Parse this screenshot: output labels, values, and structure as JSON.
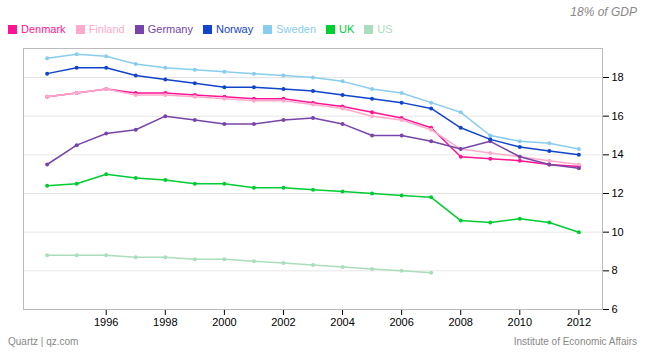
{
  "chart_data": {
    "type": "line",
    "title": "18% of GDP",
    "annotations": [
      "Quartz | qz.com",
      "Institute of Economic Affairs"
    ],
    "x": [
      1994,
      1995,
      1996,
      1997,
      1998,
      1999,
      2000,
      2001,
      2002,
      2003,
      2004,
      2005,
      2006,
      2007,
      2008,
      2009,
      2010,
      2011,
      2012
    ],
    "series": [
      {
        "name": "Denmark",
        "color": "#ff1493",
        "values": [
          17.0,
          17.2,
          17.4,
          17.2,
          17.2,
          17.1,
          17.0,
          16.9,
          16.9,
          16.7,
          16.5,
          16.2,
          15.9,
          15.4,
          13.9,
          13.8,
          13.7,
          13.5,
          13.4
        ]
      },
      {
        "name": "Finland",
        "color": "#ffaacc",
        "values": [
          17.0,
          17.2,
          17.4,
          17.1,
          17.1,
          17.0,
          16.9,
          16.8,
          16.8,
          16.6,
          16.4,
          16.0,
          15.8,
          15.3,
          14.3,
          14.1,
          13.9,
          13.7,
          13.5
        ]
      },
      {
        "name": "Germany",
        "color": "#7744aa",
        "values": [
          13.5,
          14.5,
          15.1,
          15.3,
          16.0,
          15.8,
          15.6,
          15.6,
          15.8,
          15.9,
          15.6,
          15.0,
          15.0,
          14.7,
          14.3,
          14.7,
          13.9,
          13.5,
          13.3
        ]
      },
      {
        "name": "Norway",
        "color": "#1144cc",
        "values": [
          18.2,
          18.5,
          18.5,
          18.1,
          17.9,
          17.7,
          17.5,
          17.5,
          17.4,
          17.3,
          17.1,
          16.9,
          16.7,
          16.4,
          15.4,
          14.8,
          14.4,
          14.2,
          14.0
        ]
      },
      {
        "name": "Sweden",
        "color": "#88ccee",
        "values": [
          19.0,
          19.2,
          19.1,
          18.7,
          18.5,
          18.4,
          18.3,
          18.2,
          18.1,
          18.0,
          17.8,
          17.4,
          17.2,
          16.7,
          16.2,
          15.0,
          14.7,
          14.6,
          14.3
        ]
      },
      {
        "name": "UK",
        "color": "#00cc33",
        "values": [
          12.4,
          12.5,
          13.0,
          12.8,
          12.7,
          12.5,
          12.5,
          12.3,
          12.3,
          12.2,
          12.1,
          12.0,
          11.9,
          11.8,
          10.6,
          10.5,
          10.7,
          10.5,
          10.0
        ]
      },
      {
        "name": "US",
        "color": "#aaddbb",
        "values": [
          8.8,
          8.8,
          8.8,
          8.7,
          8.7,
          8.6,
          8.6,
          8.5,
          8.4,
          8.3,
          8.2,
          8.1,
          8.0,
          7.9,
          null,
          null,
          null,
          null,
          null
        ]
      }
    ],
    "xlim": [
      1993.2,
      2012.8
    ],
    "xticks": [
      1996,
      1998,
      2000,
      2002,
      2004,
      2006,
      2008,
      2010,
      2012
    ],
    "ylim": [
      6,
      19.5
    ],
    "yticks": [
      6,
      8,
      10,
      12,
      14,
      16,
      18
    ],
    "grid": true,
    "legend": "top",
    "marker": "circle"
  }
}
